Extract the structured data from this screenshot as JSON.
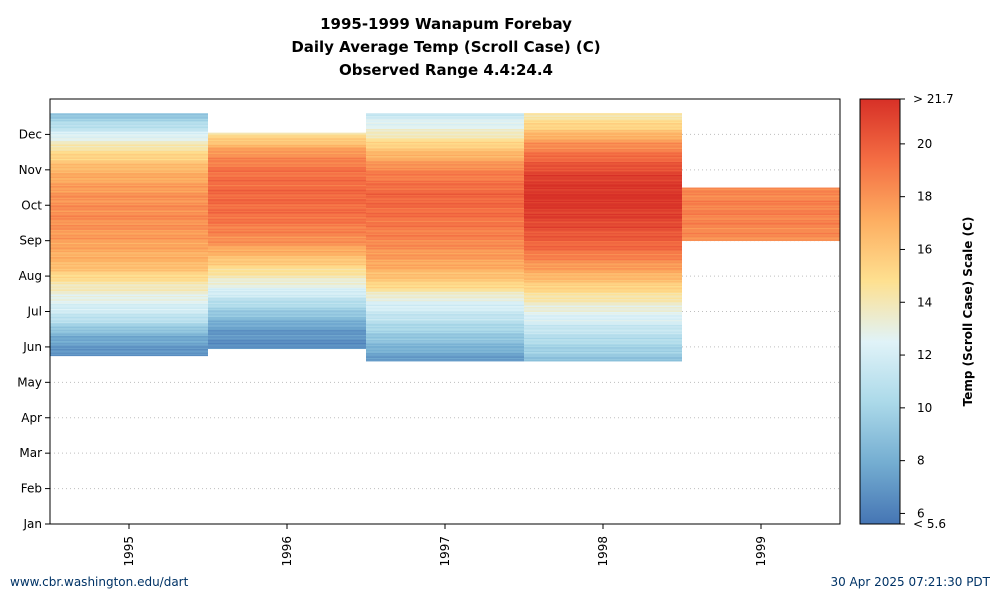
{
  "chart_data": {
    "type": "heatmap",
    "title_lines": [
      "1995-1999 Wanapum Forebay",
      "Daily Average Temp (Scroll Case) (C)",
      "Observed Range 4.4:24.4"
    ],
    "x_categories": [
      "1995",
      "1996",
      "1997",
      "1998",
      "1999"
    ],
    "y_ticks": [
      "Jan",
      "Feb",
      "Mar",
      "Apr",
      "May",
      "Jun",
      "Jul",
      "Aug",
      "Sep",
      "Oct",
      "Nov",
      "Dec"
    ],
    "y_grid": true,
    "colorbar": {
      "label": "Temp (Scroll Case) Scale (C)",
      "min": 5.6,
      "max": 21.7,
      "ticks": [
        6,
        8,
        10,
        12,
        14,
        16,
        18,
        20
      ],
      "max_label": "> 21.7",
      "min_label": "< 5.6",
      "colors": [
        "#4575b4",
        "#74add1",
        "#abd9e9",
        "#e0f3f8",
        "#fee090",
        "#fdae61",
        "#f46d43",
        "#d73027"
      ]
    },
    "series": [
      {
        "year": "1995",
        "start_month": 4.75,
        "end_month": 11.6,
        "profile": [
          [
            4.75,
            6.5
          ],
          [
            5.3,
            8.0
          ],
          [
            5.8,
            11.0
          ],
          [
            6.3,
            12.6
          ],
          [
            6.8,
            14.2
          ],
          [
            7.3,
            16.5
          ],
          [
            8.0,
            17.6
          ],
          [
            8.7,
            18.3
          ],
          [
            9.3,
            18.0
          ],
          [
            10.0,
            16.8
          ],
          [
            10.6,
            14.5
          ],
          [
            11.0,
            12.2
          ],
          [
            11.3,
            10.5
          ],
          [
            11.6,
            9.0
          ]
        ]
      },
      {
        "year": "1996",
        "start_month": 4.95,
        "end_month": 11.05,
        "profile": [
          [
            4.95,
            6.5
          ],
          [
            5.5,
            7.2
          ],
          [
            6.0,
            9.5
          ],
          [
            6.5,
            11.8
          ],
          [
            7.0,
            14.0
          ],
          [
            7.5,
            16.2
          ],
          [
            8.0,
            18.2
          ],
          [
            8.7,
            19.3
          ],
          [
            9.3,
            19.6
          ],
          [
            10.0,
            19.2
          ],
          [
            10.5,
            18.0
          ],
          [
            10.8,
            16.0
          ],
          [
            11.05,
            14.5
          ]
        ]
      },
      {
        "year": "1997",
        "start_month": 4.6,
        "end_month": 11.6,
        "profile": [
          [
            4.6,
            7.0
          ],
          [
            5.2,
            9.0
          ],
          [
            5.8,
            11.0
          ],
          [
            6.3,
            12.5
          ],
          [
            6.8,
            15.5
          ],
          [
            7.3,
            17.2
          ],
          [
            8.0,
            18.5
          ],
          [
            8.8,
            19.4
          ],
          [
            9.3,
            19.7
          ],
          [
            10.0,
            18.6
          ],
          [
            10.6,
            16.0
          ],
          [
            11.0,
            13.8
          ],
          [
            11.3,
            12.5
          ],
          [
            11.6,
            11.5
          ]
        ]
      },
      {
        "year": "1998",
        "start_month": 4.6,
        "end_month": 11.6,
        "profile": [
          [
            4.6,
            9.0
          ],
          [
            5.0,
            10.0
          ],
          [
            5.5,
            11.3
          ],
          [
            6.0,
            12.8
          ],
          [
            6.6,
            15.0
          ],
          [
            7.2,
            17.5
          ],
          [
            7.8,
            19.5
          ],
          [
            8.5,
            20.8
          ],
          [
            9.2,
            21.7
          ],
          [
            9.8,
            21.2
          ],
          [
            10.3,
            19.8
          ],
          [
            10.8,
            17.8
          ],
          [
            11.2,
            15.5
          ],
          [
            11.6,
            14.0
          ]
        ]
      },
      {
        "year": "1999",
        "start_month": 8.0,
        "end_month": 9.5,
        "profile": [
          [
            8.0,
            18.2
          ],
          [
            8.5,
            18.6
          ],
          [
            9.0,
            18.7
          ],
          [
            9.5,
            18.3
          ]
        ]
      }
    ]
  },
  "footer": {
    "left": "www.cbr.washington.edu/dart",
    "right": "30 Apr 2025 07:21:30 PDT"
  }
}
